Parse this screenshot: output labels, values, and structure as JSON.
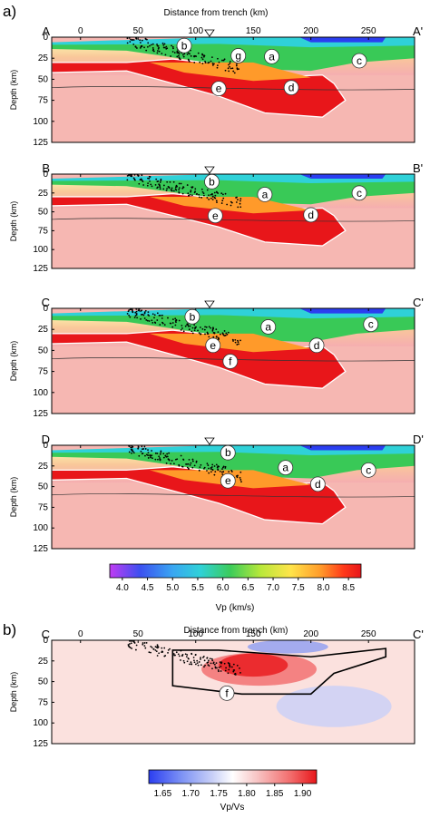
{
  "figure": {
    "panel_letters": [
      "a)",
      "b)"
    ],
    "x_axis_title": "Distance from trench (km)",
    "depth_label": "Depth (km)",
    "x_ticks": [
      "0",
      "50",
      "100",
      "150",
      "200",
      "250"
    ],
    "y_ticks": [
      "0",
      "25",
      "50",
      "75",
      "100",
      "125"
    ],
    "vp_colorbar": {
      "label": "Vp (km/s)",
      "ticks": [
        "4.0",
        "4.5",
        "5.0",
        "5.5",
        "6.0",
        "6.5",
        "7.0",
        "7.5",
        "8.0",
        "8.5"
      ]
    },
    "vpvs_colorbar": {
      "label": "Vp/Vs",
      "ticks": [
        "1.65",
        "1.70",
        "1.75",
        "1.80",
        "1.85",
        "1.90"
      ]
    },
    "colors": {
      "vp_scale": [
        "#c13cf2",
        "#3c50f0",
        "#3aa6f2",
        "#2fd1d8",
        "#3ccc5a",
        "#b8e83a",
        "#ffe44a",
        "#ff9a2a",
        "#ff3a1a",
        "#e8161a"
      ],
      "vpvs_scale": [
        "#2b3ef0",
        "#7f94f5",
        "#c9d0f7",
        "#ffffff",
        "#f7c2c2",
        "#f26a6a",
        "#e8161a"
      ],
      "background_pink": "#f6b7b2"
    }
  },
  "chart_data": [
    {
      "type": "heatmap",
      "title": "",
      "section_start": "A",
      "section_end": "A'",
      "xlabel": "Distance from trench (km)",
      "ylabel": "Depth (km)",
      "xlim": [
        -25,
        290
      ],
      "ylim": [
        125,
        0
      ],
      "x_ticks": [
        0,
        50,
        100,
        150,
        200,
        250
      ],
      "y_ticks": [
        0,
        25,
        50,
        75,
        100,
        125
      ],
      "colorbar": "Vp (km/s)",
      "labels": [
        {
          "text": "b",
          "x": 90,
          "y": 10
        },
        {
          "text": "g",
          "x": 137,
          "y": 22
        },
        {
          "text": "a",
          "x": 166,
          "y": 23
        },
        {
          "text": "c",
          "x": 242,
          "y": 28
        },
        {
          "text": "e",
          "x": 120,
          "y": 61
        },
        {
          "text": "d",
          "x": 183,
          "y": 60
        }
      ]
    },
    {
      "type": "heatmap",
      "title": "",
      "section_start": "B",
      "section_end": "B'",
      "xlabel": "",
      "ylabel": "Depth (km)",
      "xlim": [
        -25,
        290
      ],
      "ylim": [
        125,
        0
      ],
      "x_ticks": [
        0,
        50,
        100,
        150,
        200,
        250
      ],
      "y_ticks": [
        0,
        25,
        50,
        75,
        100,
        125
      ],
      "colorbar": "Vp (km/s)",
      "labels": [
        {
          "text": "b",
          "x": 114,
          "y": 10
        },
        {
          "text": "a",
          "x": 160,
          "y": 27
        },
        {
          "text": "c",
          "x": 242,
          "y": 25
        },
        {
          "text": "e",
          "x": 117,
          "y": 55
        },
        {
          "text": "d",
          "x": 200,
          "y": 54
        }
      ]
    },
    {
      "type": "heatmap",
      "title": "",
      "section_start": "C",
      "section_end": "C'",
      "xlabel": "",
      "ylabel": "Depth (km)",
      "xlim": [
        -25,
        290
      ],
      "ylim": [
        125,
        0
      ],
      "x_ticks": [
        0,
        50,
        100,
        150,
        200,
        250
      ],
      "y_ticks": [
        0,
        25,
        50,
        75,
        100,
        125
      ],
      "colorbar": "Vp (km/s)",
      "labels": [
        {
          "text": "b",
          "x": 97,
          "y": 10
        },
        {
          "text": "a",
          "x": 163,
          "y": 22
        },
        {
          "text": "c",
          "x": 252,
          "y": 19
        },
        {
          "text": "e",
          "x": 115,
          "y": 44
        },
        {
          "text": "f",
          "x": 130,
          "y": 63
        },
        {
          "text": "d",
          "x": 205,
          "y": 44
        }
      ]
    },
    {
      "type": "heatmap",
      "title": "",
      "section_start": "D",
      "section_end": "D'",
      "xlabel": "",
      "ylabel": "Depth (km)",
      "xlim": [
        -25,
        290
      ],
      "ylim": [
        125,
        0
      ],
      "x_ticks": [
        0,
        50,
        100,
        150,
        200,
        250
      ],
      "y_ticks": [
        0,
        25,
        50,
        75,
        100,
        125
      ],
      "colorbar": "Vp (km/s)",
      "labels": [
        {
          "text": "b",
          "x": 128,
          "y": 9
        },
        {
          "text": "a",
          "x": 178,
          "y": 27
        },
        {
          "text": "c",
          "x": 250,
          "y": 30
        },
        {
          "text": "e",
          "x": 128,
          "y": 43
        },
        {
          "text": "d",
          "x": 206,
          "y": 47
        }
      ]
    },
    {
      "type": "heatmap",
      "title": "",
      "section_start": "C",
      "section_end": "C'",
      "xlabel": "Distance from trench (km)",
      "ylabel": "Depth (km)",
      "xlim": [
        -25,
        290
      ],
      "ylim": [
        125,
        0
      ],
      "x_ticks": [
        0,
        50,
        100,
        150,
        200,
        250
      ],
      "y_ticks": [
        0,
        25,
        50,
        75,
        100,
        125
      ],
      "colorbar": "Vp/Vs",
      "labels": [
        {
          "text": "f",
          "x": 127,
          "y": 64
        }
      ]
    }
  ]
}
